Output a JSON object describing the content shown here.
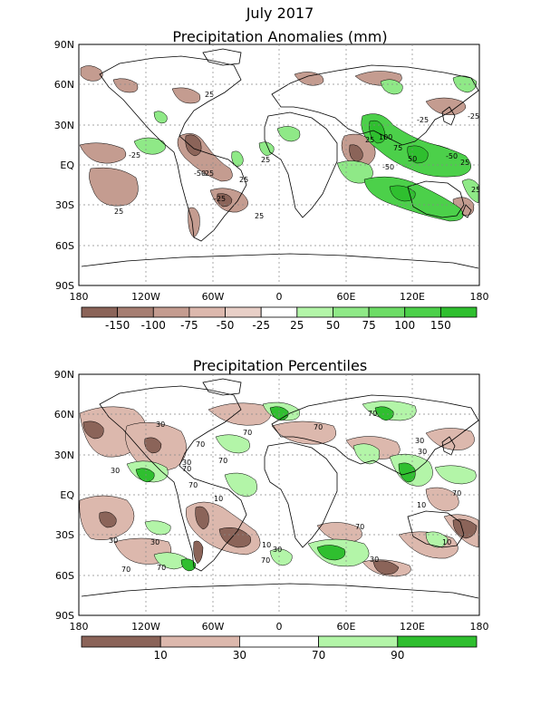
{
  "title": "July 2017",
  "colors": {
    "dry3": "#8b6459",
    "dry2": "#a67e72",
    "dry1": "#c49c90",
    "dry0": "#dcb8ad",
    "wet0": "#b3f5a8",
    "wet1": "#8fe987",
    "wet2": "#6ddc66",
    "wet3": "#4cd04a",
    "wet4": "#2fbf2f"
  },
  "chart_data": [
    {
      "type": "heatmap",
      "title": "Precipitation Anomalies (mm)",
      "xaxis": {
        "ticks": [
          "180",
          "120W",
          "60W",
          "0",
          "60E",
          "120E",
          "180"
        ],
        "range": [
          -180,
          180
        ]
      },
      "yaxis": {
        "ticks": [
          "90N",
          "60N",
          "30N",
          "EQ",
          "30S",
          "60S",
          "90S"
        ],
        "range": [
          -90,
          90
        ]
      },
      "grid": true,
      "colorbar": {
        "labels": [
          "-150",
          "-100",
          "-75",
          "-50",
          "-25",
          "25",
          "50",
          "75",
          "100",
          "150"
        ],
        "colors": [
          "#8b6459",
          "#a67e72",
          "#c49c90",
          "#dcb8ad",
          "#e8cfc7",
          "#ffffff",
          "#b3f5a8",
          "#8fe987",
          "#6ddc66",
          "#4cd04a",
          "#2fbf2f"
        ]
      },
      "contour_labels": [
        "25",
        "-25",
        "-25",
        "25",
        "-50",
        "25",
        "-25",
        "25",
        "25",
        "100",
        "25",
        "75",
        "-50",
        "50",
        "-50",
        "25",
        "-25",
        "-25",
        "25"
      ]
    },
    {
      "type": "heatmap",
      "title": "Precipitation Percentiles",
      "xaxis": {
        "ticks": [
          "180",
          "120W",
          "60W",
          "0",
          "60E",
          "120E",
          "180"
        ],
        "range": [
          -180,
          180
        ]
      },
      "yaxis": {
        "ticks": [
          "90N",
          "60N",
          "30N",
          "EQ",
          "30S",
          "60S",
          "90S"
        ],
        "range": [
          -90,
          90
        ]
      },
      "grid": true,
      "colorbar": {
        "labels": [
          "10",
          "30",
          "70",
          "90"
        ],
        "colors": [
          "#8b6459",
          "#dcb8ad",
          "#ffffff",
          "#b3f5a8",
          "#2fbf2f"
        ]
      },
      "contour_labels": [
        "30",
        "70",
        "70",
        "30",
        "70",
        "70",
        "70",
        "30",
        "10",
        "70",
        "30",
        "70",
        "30",
        "10",
        "30",
        "70",
        "70",
        "30",
        "10",
        "70",
        "30",
        "70",
        "10",
        "70",
        "30"
      ]
    }
  ]
}
